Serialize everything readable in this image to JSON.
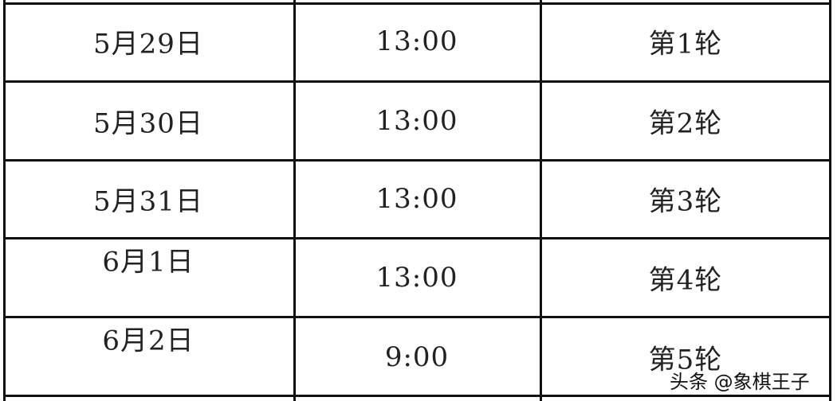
{
  "rows": [
    {
      "date": "5月29日",
      "time": "13:00",
      "round": "第1轮"
    },
    {
      "date": "5月30日",
      "time": "13:00",
      "round": "第2轮"
    },
    {
      "date": "5月31日",
      "time": "13:00",
      "round": "第3轮"
    },
    {
      "date": "6月1日",
      "time": "13:00",
      "round": "第4轮"
    },
    {
      "date": "6月2日",
      "time": "9:00",
      "round": "第5轮"
    }
  ],
  "watermark": "头条 @象棋王子"
}
